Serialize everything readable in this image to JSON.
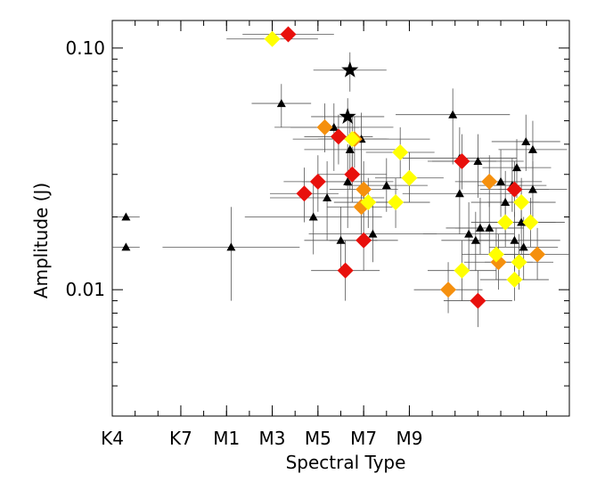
{
  "chart_data": {
    "type": "scatter",
    "xlabel": "Spectral Type",
    "ylabel": "Amplitude (J)",
    "y_scale": "log",
    "xlim": [
      "K4",
      "M9"
    ],
    "ylim": [
      0.003,
      0.13
    ],
    "x_ticks": [
      "K4",
      "K7",
      "M1",
      "M3",
      "M5",
      "M7",
      "M9"
    ],
    "y_ticks": [
      "0.10",
      "0.01"
    ],
    "grid": false,
    "legend": "none",
    "series": [
      {
        "marker": "triangle",
        "color": "#000000",
        "points": [
          {
            "x": 7.4,
            "y": 0.059,
            "xerr": 1.3,
            "yerr_lo": 0.012,
            "yerr_hi": 0.012
          },
          {
            "x": 9.7,
            "y": 0.047,
            "xerr": 2.6,
            "yerr_lo": 0.016,
            "yerr_hi": 0.012
          },
          {
            "x": 10.4,
            "y": 0.038,
            "xerr": 2.0,
            "yerr_lo": 0.012,
            "yerr_hi": 0.012
          },
          {
            "x": 10.9,
            "y": 0.042,
            "xerr": 3.0,
            "yerr_lo": 0.014,
            "yerr_hi": 0.012
          },
          {
            "x": 10.3,
            "y": 0.028,
            "xerr": 2.0,
            "yerr_lo": 0.01,
            "yerr_hi": 0.012
          },
          {
            "x": 9.4,
            "y": 0.024,
            "xerr": 2.5,
            "yerr_lo": 0.008,
            "yerr_hi": 0.01
          },
          {
            "x": 8.8,
            "y": 0.02,
            "xerr": 3.0,
            "yerr_lo": 0.006,
            "yerr_hi": 0.008
          },
          {
            "x": 11.4,
            "y": 0.017,
            "xerr": 2.8,
            "yerr_lo": 0.004,
            "yerr_hi": 0.006
          },
          {
            "x": 12.0,
            "y": 0.027,
            "xerr": 1.8,
            "yerr_lo": 0.006,
            "yerr_hi": 0.008
          },
          {
            "x": 10.0,
            "y": 0.016,
            "xerr": 1.6,
            "yerr_lo": 0.004,
            "yerr_hi": 0.006
          },
          {
            "x": 5.2,
            "y": 0.015,
            "xerr": 3.0,
            "yerr_lo": 0.006,
            "yerr_hi": 0.007
          },
          {
            "x": 0.6,
            "y": 0.02,
            "xerr": 0.6,
            "yerr_lo": 0,
            "yerr_hi": 0
          },
          {
            "x": 0.6,
            "y": 0.015,
            "xerr": 0.6,
            "yerr_lo": 0,
            "yerr_hi": 0
          },
          {
            "x": 14.9,
            "y": 0.053,
            "xerr": 2.5,
            "yerr_lo": 0.02,
            "yerr_hi": 0.015
          },
          {
            "x": 15.2,
            "y": 0.035,
            "xerr": 2.5,
            "yerr_lo": 0.01,
            "yerr_hi": 0.012
          },
          {
            "x": 16.0,
            "y": 0.034,
            "xerr": 2.0,
            "yerr_lo": 0.01,
            "yerr_hi": 0.01
          },
          {
            "x": 15.2,
            "y": 0.025,
            "xerr": 2.5,
            "yerr_lo": 0.008,
            "yerr_hi": 0.01
          },
          {
            "x": 15.6,
            "y": 0.017,
            "xerr": 2.0,
            "yerr_lo": 0.005,
            "yerr_hi": 0.006
          },
          {
            "x": 15.9,
            "y": 0.016,
            "xerr": 1.5,
            "yerr_lo": 0.004,
            "yerr_hi": 0.005
          },
          {
            "x": 16.1,
            "y": 0.018,
            "xerr": 1.5,
            "yerr_lo": 0.004,
            "yerr_hi": 0.006
          },
          {
            "x": 17.0,
            "y": 0.028,
            "xerr": 1.8,
            "yerr_lo": 0.008,
            "yerr_hi": 0.01
          },
          {
            "x": 17.2,
            "y": 0.023,
            "xerr": 1.5,
            "yerr_lo": 0.006,
            "yerr_hi": 0.008
          },
          {
            "x": 17.5,
            "y": 0.027,
            "xerr": 1.5,
            "yerr_lo": 0.006,
            "yerr_hi": 0.008
          },
          {
            "x": 17.7,
            "y": 0.032,
            "xerr": 1.5,
            "yerr_lo": 0.008,
            "yerr_hi": 0.01
          },
          {
            "x": 17.9,
            "y": 0.019,
            "xerr": 1.5,
            "yerr_lo": 0.005,
            "yerr_hi": 0.006
          },
          {
            "x": 18.0,
            "y": 0.015,
            "xerr": 1.5,
            "yerr_lo": 0.004,
            "yerr_hi": 0.005
          },
          {
            "x": 18.1,
            "y": 0.041,
            "xerr": 1.5,
            "yerr_lo": 0.01,
            "yerr_hi": 0.012
          },
          {
            "x": 18.4,
            "y": 0.038,
            "xerr": 1.5,
            "yerr_lo": 0.01,
            "yerr_hi": 0.012
          },
          {
            "x": 18.4,
            "y": 0.026,
            "xerr": 1.5,
            "yerr_lo": 0.006,
            "yerr_hi": 0.008
          },
          {
            "x": 17.6,
            "y": 0.016,
            "xerr": 2.0,
            "yerr_lo": 0.004,
            "yerr_hi": 0.005
          },
          {
            "x": 16.5,
            "y": 0.018,
            "xerr": 1.5,
            "yerr_lo": 0.004,
            "yerr_hi": 0.005
          }
        ]
      },
      {
        "marker": "star",
        "color": "#000000",
        "points": [
          {
            "x": 10.4,
            "y": 0.081,
            "xerr": 1.6,
            "yerr_lo": 0.015,
            "yerr_hi": 0.015
          },
          {
            "x": 10.3,
            "y": 0.052,
            "xerr": 1.6,
            "yerr_lo": 0.01,
            "yerr_hi": 0.01
          }
        ]
      },
      {
        "marker": "diamond",
        "color": "#e8100c",
        "points": [
          {
            "x": 7.7,
            "y": 0.114,
            "xerr": 2.0,
            "yerr_lo": 0.0,
            "yerr_hi": 0.0
          },
          {
            "x": 9.9,
            "y": 0.043,
            "xerr": 1.5,
            "yerr_lo": 0.01,
            "yerr_hi": 0.01
          },
          {
            "x": 10.5,
            "y": 0.03,
            "xerr": 1.5,
            "yerr_lo": 0.007,
            "yerr_hi": 0.008
          },
          {
            "x": 9.0,
            "y": 0.028,
            "xerr": 1.5,
            "yerr_lo": 0.007,
            "yerr_hi": 0.008
          },
          {
            "x": 8.4,
            "y": 0.025,
            "xerr": 1.5,
            "yerr_lo": 0.006,
            "yerr_hi": 0.007
          },
          {
            "x": 11.0,
            "y": 0.016,
            "xerr": 1.5,
            "yerr_lo": 0.004,
            "yerr_hi": 0.005
          },
          {
            "x": 10.2,
            "y": 0.012,
            "xerr": 1.5,
            "yerr_lo": 0.003,
            "yerr_hi": 0.004
          },
          {
            "x": 15.3,
            "y": 0.034,
            "xerr": 1.5,
            "yerr_lo": 0.008,
            "yerr_hi": 0.01
          },
          {
            "x": 17.6,
            "y": 0.026,
            "xerr": 1.5,
            "yerr_lo": 0.006,
            "yerr_hi": 0.008
          },
          {
            "x": 16.0,
            "y": 0.009,
            "xerr": 1.5,
            "yerr_lo": 0.002,
            "yerr_hi": 0.003
          }
        ]
      },
      {
        "marker": "diamond",
        "color": "#f5900e",
        "points": [
          {
            "x": 9.3,
            "y": 0.047,
            "xerr": 1.5,
            "yerr_lo": 0.01,
            "yerr_hi": 0.012
          },
          {
            "x": 10.6,
            "y": 0.042,
            "xerr": 1.5,
            "yerr_lo": 0.01,
            "yerr_hi": 0.01
          },
          {
            "x": 11.0,
            "y": 0.026,
            "xerr": 1.5,
            "yerr_lo": 0.006,
            "yerr_hi": 0.008
          },
          {
            "x": 10.9,
            "y": 0.022,
            "xerr": 1.5,
            "yerr_lo": 0.005,
            "yerr_hi": 0.006
          },
          {
            "x": 16.5,
            "y": 0.028,
            "xerr": 1.5,
            "yerr_lo": 0.006,
            "yerr_hi": 0.008
          },
          {
            "x": 16.9,
            "y": 0.013,
            "xerr": 1.5,
            "yerr_lo": 0.003,
            "yerr_hi": 0.004
          },
          {
            "x": 14.7,
            "y": 0.01,
            "xerr": 1.5,
            "yerr_lo": 0.002,
            "yerr_hi": 0.003
          },
          {
            "x": 18.6,
            "y": 0.014,
            "xerr": 1.5,
            "yerr_lo": 0.003,
            "yerr_hi": 0.004
          }
        ]
      },
      {
        "marker": "diamond",
        "color": "#ffff00",
        "points": [
          {
            "x": 7.0,
            "y": 0.109,
            "xerr": 2.0,
            "yerr_lo": 0.0,
            "yerr_hi": 0.0
          },
          {
            "x": 10.5,
            "y": 0.042,
            "xerr": 1.5,
            "yerr_lo": 0.01,
            "yerr_hi": 0.01
          },
          {
            "x": 12.6,
            "y": 0.037,
            "xerr": 1.5,
            "yerr_lo": 0.008,
            "yerr_hi": 0.01
          },
          {
            "x": 13.0,
            "y": 0.029,
            "xerr": 1.5,
            "yerr_lo": 0.006,
            "yerr_hi": 0.008
          },
          {
            "x": 12.4,
            "y": 0.023,
            "xerr": 1.5,
            "yerr_lo": 0.005,
            "yerr_hi": 0.006
          },
          {
            "x": 11.2,
            "y": 0.023,
            "xerr": 1.5,
            "yerr_lo": 0.005,
            "yerr_hi": 0.006
          },
          {
            "x": 17.2,
            "y": 0.019,
            "xerr": 1.5,
            "yerr_lo": 0.004,
            "yerr_hi": 0.005
          },
          {
            "x": 17.9,
            "y": 0.023,
            "xerr": 1.5,
            "yerr_lo": 0.005,
            "yerr_hi": 0.006
          },
          {
            "x": 18.3,
            "y": 0.019,
            "xerr": 1.5,
            "yerr_lo": 0.004,
            "yerr_hi": 0.005
          },
          {
            "x": 16.8,
            "y": 0.014,
            "xerr": 1.5,
            "yerr_lo": 0.003,
            "yerr_hi": 0.004
          },
          {
            "x": 17.8,
            "y": 0.013,
            "xerr": 1.5,
            "yerr_lo": 0.003,
            "yerr_hi": 0.004
          },
          {
            "x": 15.3,
            "y": 0.012,
            "xerr": 1.5,
            "yerr_lo": 0.003,
            "yerr_hi": 0.004
          },
          {
            "x": 17.6,
            "y": 0.011,
            "xerr": 1.5,
            "yerr_lo": 0.002,
            "yerr_hi": 0.003
          }
        ]
      }
    ]
  }
}
